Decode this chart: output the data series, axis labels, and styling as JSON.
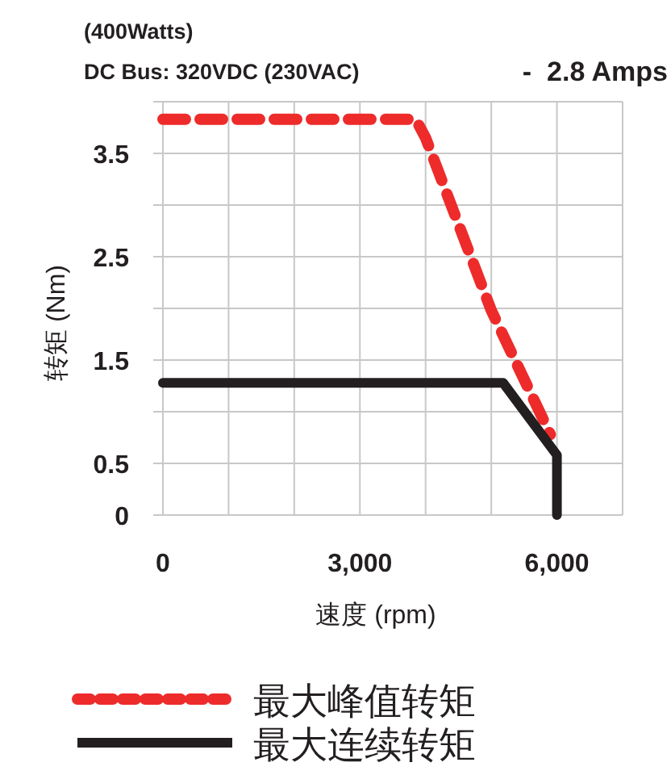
{
  "chart_data": {
    "type": "line",
    "title": "(400Watts)",
    "subtitle": "DC Bus: 320VDC (230VAC)",
    "annotations": [
      "-  2.8 Amps"
    ],
    "xlabel": "速度 (rpm)",
    "ylabel": "转矩 (Nm)",
    "xlim": [
      0,
      7000
    ],
    "ylim": [
      0,
      4
    ],
    "xticks": [
      0,
      {
        "value": 1000,
        "label": null
      },
      {
        "value": 2000,
        "label": null
      },
      {
        "value": 3000,
        "label": "3,000"
      },
      {
        "value": 4000,
        "label": null
      },
      {
        "value": 5000,
        "label": null
      },
      {
        "value": 6000,
        "label": "6,000"
      },
      {
        "value": 7000,
        "label": null
      }
    ],
    "yticks": [
      0,
      0.5,
      {
        "value": 1,
        "label": null
      },
      1.5,
      {
        "value": 2,
        "label": null
      },
      2.5,
      {
        "value": 3,
        "label": null
      },
      3.5,
      {
        "value": 4,
        "label": null
      }
    ],
    "grid": true,
    "legend": "bottom",
    "series": [
      {
        "name": "最大峰值转矩",
        "color": "#ee2b2b",
        "line_style": "dashed",
        "x": [
          0,
          3850,
          4000,
          5000,
          5900
        ],
        "values": [
          3.83,
          3.83,
          3.65,
          1.98,
          0.78
        ]
      },
      {
        "name": "最大连续转矩",
        "color": "#231f20",
        "line_style": "solid",
        "x": [
          0,
          5180,
          6000,
          6000
        ],
        "values": [
          1.28,
          1.28,
          0.58,
          0
        ]
      }
    ]
  }
}
